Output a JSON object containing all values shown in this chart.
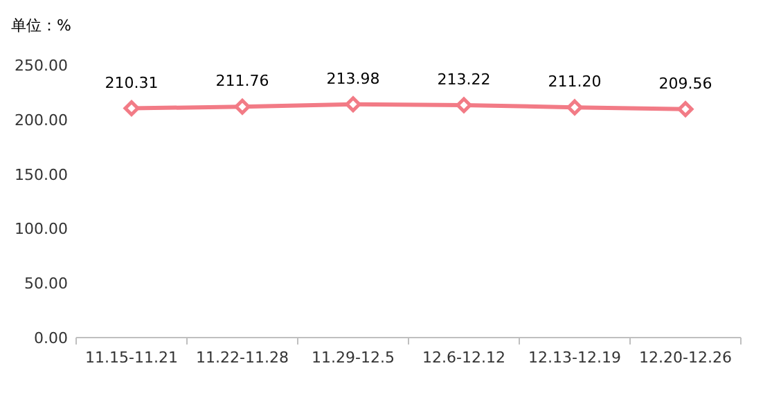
{
  "chart_data": {
    "type": "line",
    "ylabel": "单位：%",
    "categories": [
      "11.15-11.21",
      "11.22-11.28",
      "11.29-12.5",
      "12.6-12.12",
      "12.13-12.19",
      "12.20-12.26"
    ],
    "values": [
      210.31,
      211.76,
      213.98,
      213.22,
      211.2,
      209.56
    ],
    "value_labels": [
      "210.31",
      "211.76",
      "213.98",
      "213.22",
      "211.20",
      "209.56"
    ],
    "color": "#f27b86",
    "marker": "diamond",
    "ylim": [
      0,
      250
    ],
    "yticks": [
      {
        "value": 0,
        "label": "0.00"
      },
      {
        "value": 50,
        "label": "50.00"
      },
      {
        "value": 100,
        "label": "100.00"
      },
      {
        "value": 150,
        "label": "150.00"
      },
      {
        "value": 200,
        "label": "200.00"
      },
      {
        "value": 250,
        "label": "250.00"
      }
    ]
  }
}
